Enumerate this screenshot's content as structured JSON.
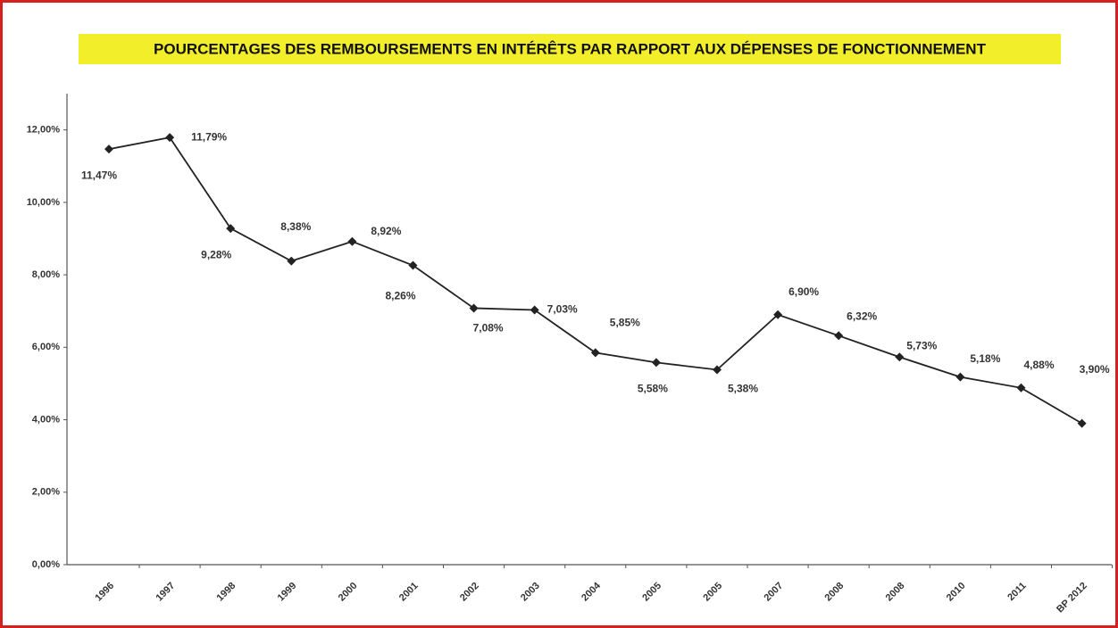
{
  "chart_data": {
    "type": "line",
    "title": "POURCENTAGES DES REMBOURSEMENTS EN INTÉRÊTS PAR RAPPORT AUX DÉPENSES DE FONCTIONNEMENT",
    "categories": [
      "1996",
      "1997",
      "1998",
      "1999",
      "2000",
      "2001",
      "2002",
      "2003",
      "2004",
      "2005",
      "2005",
      "2007",
      "2008",
      "2008",
      "2010",
      "2011",
      "BP 2012"
    ],
    "values": [
      11.47,
      11.79,
      9.28,
      8.38,
      8.92,
      8.26,
      7.08,
      7.03,
      5.85,
      5.58,
      5.38,
      6.9,
      6.32,
      5.73,
      5.18,
      4.88,
      3.9
    ],
    "value_labels": [
      "11,47%",
      "11,79%",
      "9,28%",
      "8,38%",
      "8,92%",
      "8,26%",
      "7,08%",
      "7,03%",
      "5,85%",
      "5,58%",
      "5,38%",
      "6,90%",
      "6,32%",
      "5,73%",
      "5,18%",
      "4,88%",
      "3,90%"
    ],
    "color": "#222222",
    "ylim": [
      0,
      13
    ],
    "yticks": [
      {
        "value": 0,
        "label": "0,00%"
      },
      {
        "value": 2,
        "label": "2,00%"
      },
      {
        "value": 4,
        "label": "4,00%"
      },
      {
        "value": 6,
        "label": "6,00%"
      },
      {
        "value": 8,
        "label": "8,00%"
      },
      {
        "value": 10,
        "label": "10,00%"
      },
      {
        "value": 12,
        "label": "12,00%"
      }
    ],
    "grid": false
  }
}
